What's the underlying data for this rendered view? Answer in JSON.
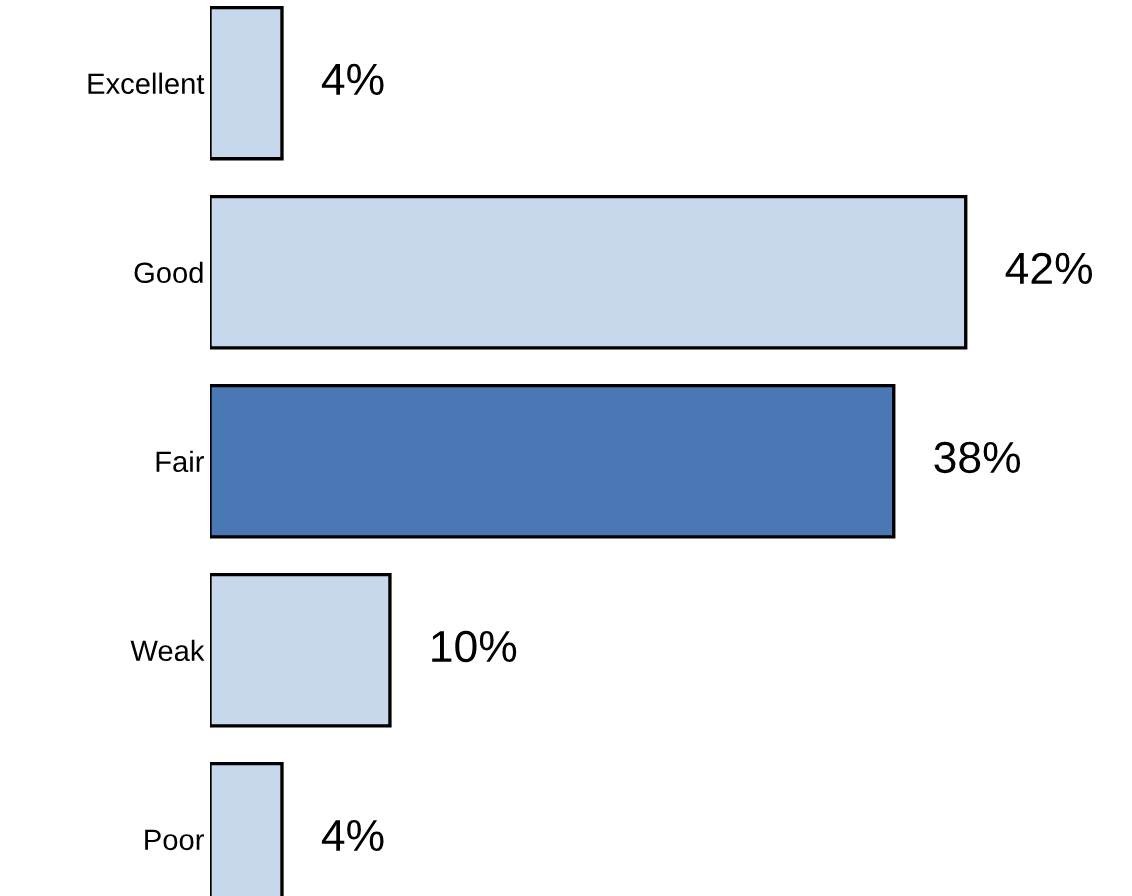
{
  "chart_data": {
    "type": "bar",
    "orientation": "horizontal",
    "categories": [
      "Excellent",
      "Good",
      "Fair",
      "Weak",
      "Poor"
    ],
    "values": [
      4,
      42,
      38,
      10,
      4
    ],
    "colors": [
      "#c8d8ec",
      "#c8d8ec",
      "#4a78b5",
      "#c8d8ec",
      "#c8d8ec"
    ],
    "value_labels": [
      "4%",
      "42%",
      "38%",
      "10%",
      "4%"
    ],
    "grid": false,
    "legend": false
  }
}
